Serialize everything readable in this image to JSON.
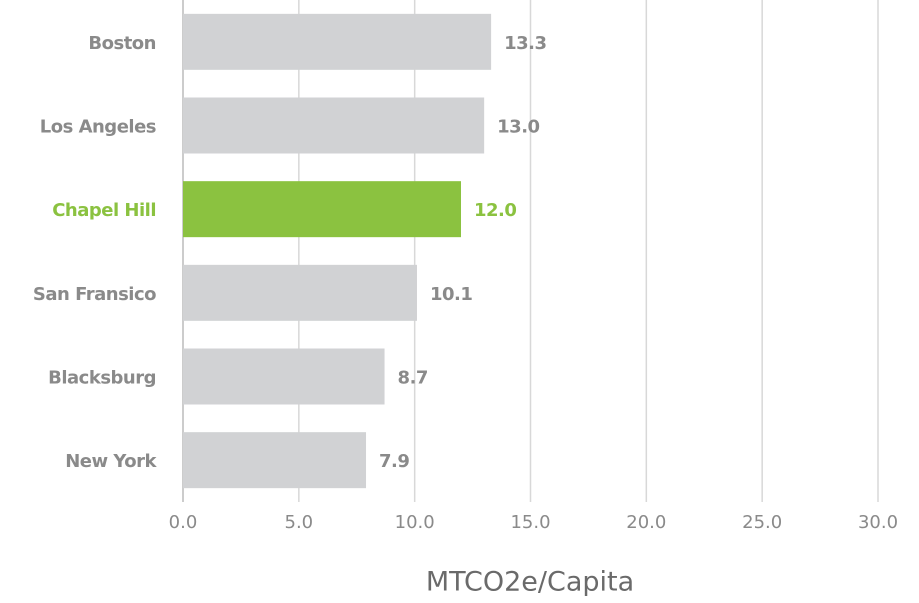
{
  "chart_data": {
    "type": "bar",
    "orientation": "horizontal",
    "categories": [
      "Boston",
      "Los Angeles",
      "Chapel Hill",
      "San Fransico",
      "Blacksburg",
      "New York"
    ],
    "values": [
      13.3,
      13.0,
      12.0,
      10.1,
      8.7,
      7.9
    ],
    "value_labels": [
      "13.3",
      "13.0",
      "12.0",
      "10.1",
      "8.7",
      "7.9"
    ],
    "colors": [
      "#d1d2d4",
      "#d1d2d4",
      "#8bc240",
      "#d1d2d4",
      "#d1d2d4",
      "#d1d2d4"
    ],
    "xlabel": "MTCO2e/Capita",
    "xlim": [
      0,
      30
    ],
    "xticks": [
      {
        "value": 0,
        "label": "0.0"
      },
      {
        "value": 5,
        "label": "5.0"
      },
      {
        "value": 10,
        "label": "10.0"
      },
      {
        "value": 15,
        "label": "15.0"
      },
      {
        "value": 20,
        "label": "20.0"
      },
      {
        "value": 25,
        "label": "25.0"
      },
      {
        "value": 30,
        "label": "30.0"
      }
    ],
    "grid": true
  }
}
